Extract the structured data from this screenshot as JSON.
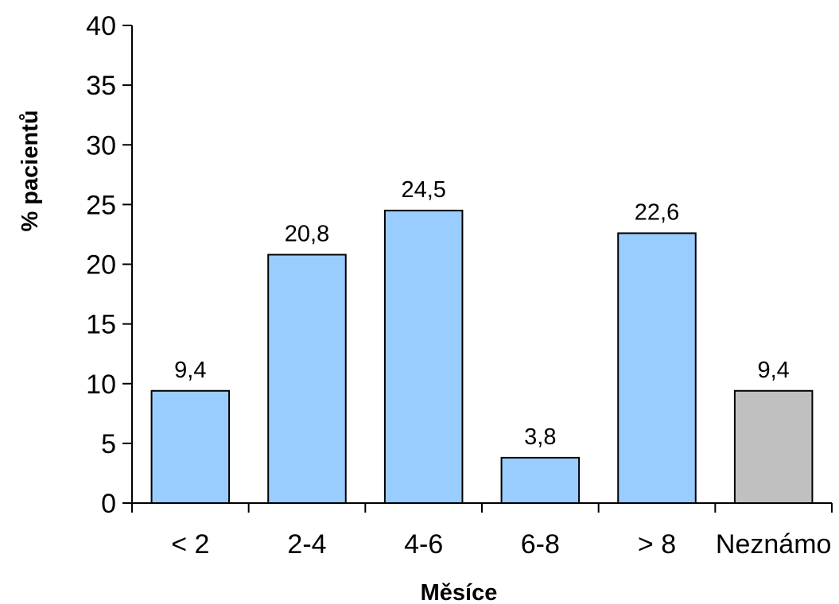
{
  "chart_data": {
    "type": "bar",
    "title": "",
    "xlabel": "Měsíce",
    "ylabel": "% pacientů",
    "ylim": [
      0,
      40
    ],
    "yticks": [
      0,
      5,
      10,
      15,
      20,
      25,
      30,
      35,
      40
    ],
    "categories": [
      "< 2",
      "2-4",
      "4-6",
      "6-8",
      "> 8",
      "Neznámo"
    ],
    "values": [
      9.4,
      20.8,
      24.5,
      3.8,
      22.6,
      9.4
    ],
    "value_labels": [
      "9,4",
      "20,8",
      "24,5",
      "3,8",
      "22,6",
      "9,4"
    ],
    "bar_colors": [
      "#99CCFF",
      "#99CCFF",
      "#99CCFF",
      "#99CCFF",
      "#99CCFF",
      "#C0C0C0"
    ],
    "grid": false,
    "legend": "none"
  }
}
